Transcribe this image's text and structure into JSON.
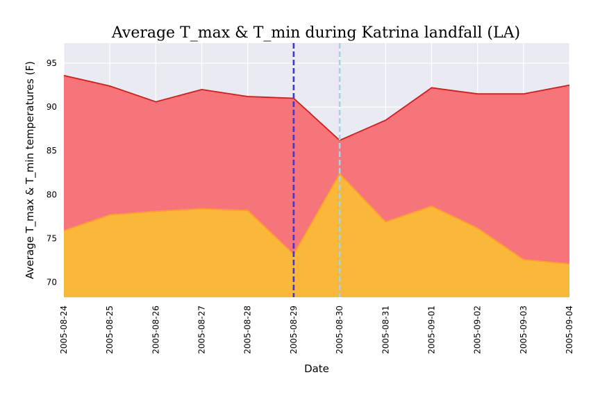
{
  "chart_data": {
    "type": "area",
    "title": "Average T_max & T_min during Katrina landfall (LA)",
    "xlabel": "Date",
    "ylabel": "Average T_max & T_min temperatures (F)",
    "x": [
      "2005-08-24",
      "2005-08-25",
      "2005-08-26",
      "2005-08-27",
      "2005-08-28",
      "2005-08-29",
      "2005-08-30",
      "2005-08-31",
      "2005-09-01",
      "2005-09-02",
      "2005-09-03",
      "2005-09-04"
    ],
    "ylim": [
      68.3,
      97.3
    ],
    "yticks": [
      70,
      75,
      80,
      85,
      90,
      95
    ],
    "series": [
      {
        "values": [
          93.6,
          92.4,
          90.6,
          92.0,
          91.2,
          91.0,
          86.2,
          88.5,
          92.2,
          91.5,
          91.5,
          92.5
        ],
        "color": "#f5757a",
        "line_color": "#e8140f"
      },
      {
        "values": [
          75.9,
          77.7,
          78.1,
          78.4,
          78.2,
          73.2,
          82.4,
          76.9,
          78.7,
          76.2,
          72.6,
          72.1
        ],
        "color": "#f9b83a",
        "line_color": "#f9a21a"
      }
    ],
    "vlines": [
      {
        "x": "2005-08-29",
        "color": "#3b35e0",
        "style": "dashed"
      },
      {
        "x": "2005-08-30",
        "color": "#a8d0e6",
        "style": "dashed"
      }
    ],
    "grid": true,
    "background": "#eaeaf2"
  }
}
